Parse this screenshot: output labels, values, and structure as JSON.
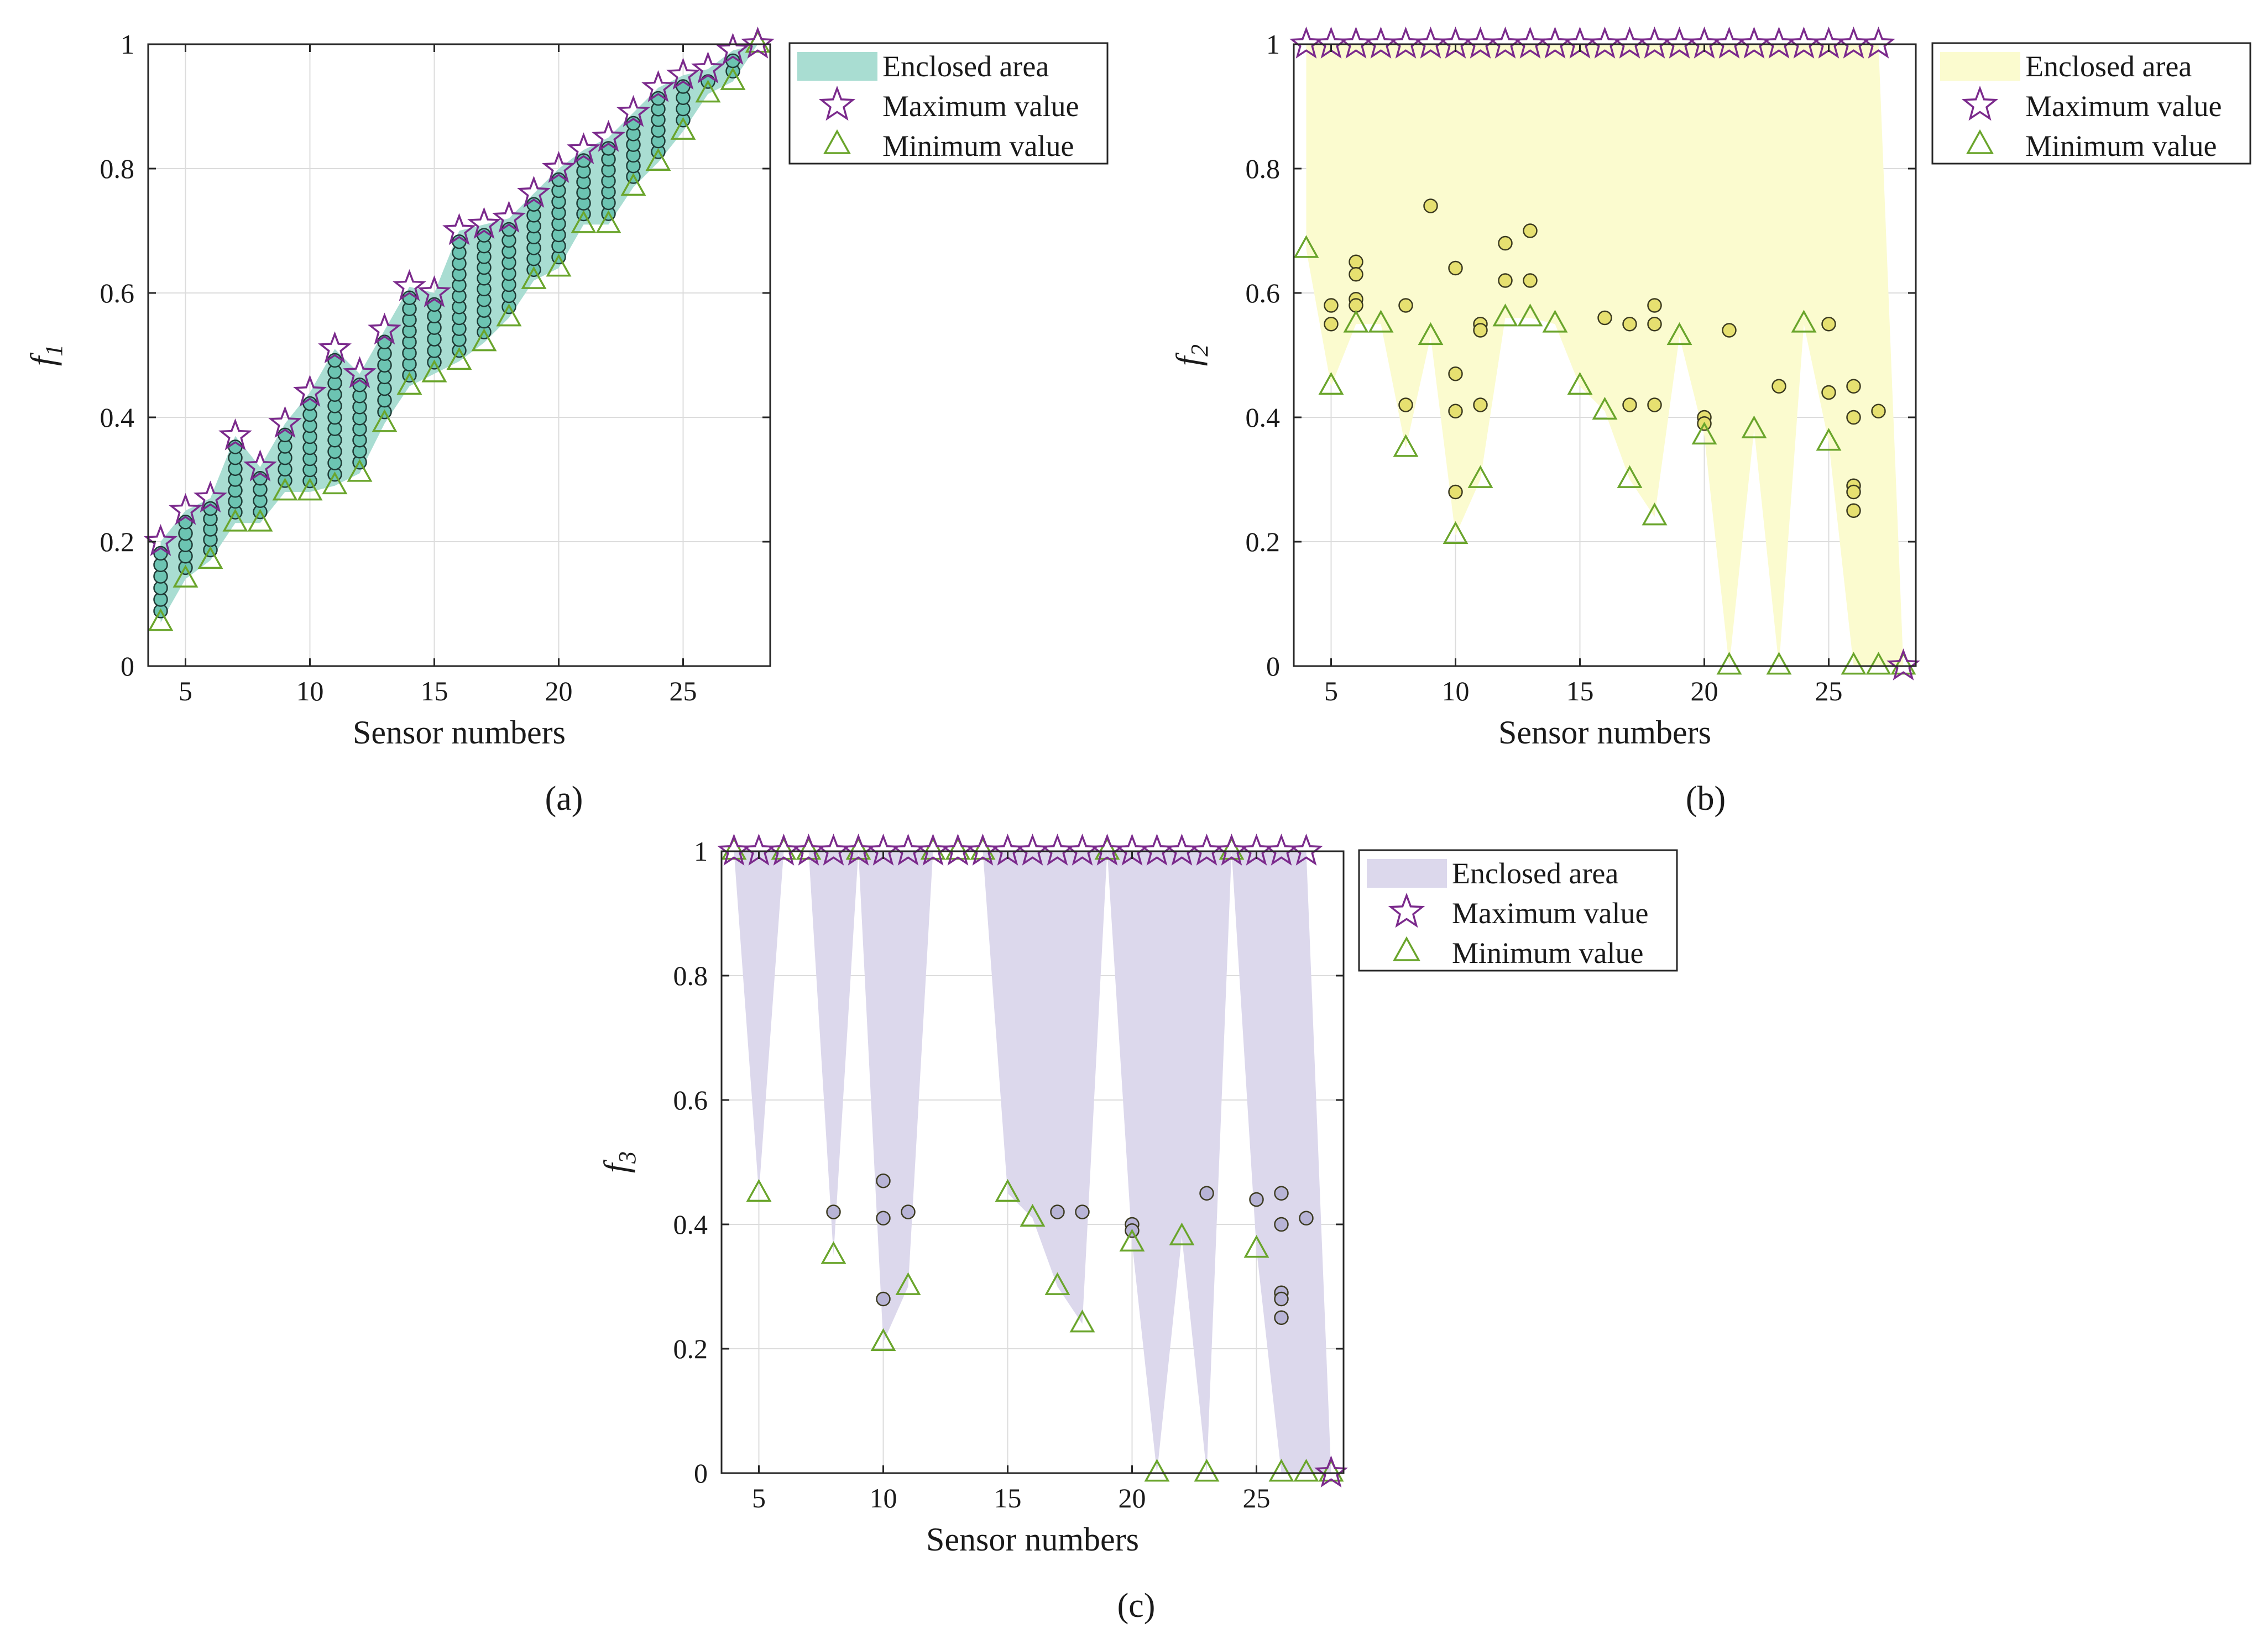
{
  "chart_data": [
    {
      "type": "scatter",
      "panel_label": "(a)",
      "ylabel": "f",
      "ylabel_sub": "1",
      "xlabel": "Sensor numbers",
      "xlim": [
        3.5,
        28.5
      ],
      "ylim": [
        0,
        1
      ],
      "xticks": [
        5,
        10,
        15,
        20,
        25
      ],
      "yticks": [
        0,
        0.2,
        0.4,
        0.6,
        0.8,
        1
      ],
      "grid": true,
      "legend_position": "outside-top-right",
      "legend": [
        "Enclosed area",
        "Maximum value",
        "Minimum value"
      ],
      "colors": {
        "area": "#a9ddd2",
        "points": "#6cc4b2",
        "max": "#7b2a8c",
        "min": "#6aa52c"
      },
      "x": [
        4,
        5,
        6,
        7,
        8,
        9,
        10,
        11,
        12,
        13,
        14,
        15,
        16,
        17,
        18,
        19,
        20,
        21,
        22,
        23,
        24,
        25,
        26,
        27,
        28
      ],
      "max": [
        0.2,
        0.25,
        0.27,
        0.37,
        0.32,
        0.39,
        0.44,
        0.51,
        0.47,
        0.54,
        0.61,
        0.6,
        0.7,
        0.71,
        0.72,
        0.76,
        0.8,
        0.83,
        0.85,
        0.89,
        0.93,
        0.95,
        0.96,
        0.99,
        1.0
      ],
      "min": [
        0.07,
        0.14,
        0.17,
        0.23,
        0.23,
        0.28,
        0.28,
        0.29,
        0.31,
        0.39,
        0.45,
        0.47,
        0.49,
        0.52,
        0.56,
        0.62,
        0.64,
        0.71,
        0.71,
        0.77,
        0.81,
        0.86,
        0.92,
        0.94,
        1.0
      ]
    },
    {
      "type": "scatter",
      "panel_label": "(b)",
      "ylabel": "f",
      "ylabel_sub": "2",
      "xlabel": "Sensor numbers",
      "xlim": [
        3.5,
        28.5
      ],
      "ylim": [
        0,
        1
      ],
      "xticks": [
        5,
        10,
        15,
        20,
        25
      ],
      "yticks": [
        0,
        0.2,
        0.4,
        0.6,
        0.8,
        1
      ],
      "grid": true,
      "legend_position": "outside-top-right",
      "legend": [
        "Enclosed area",
        "Maximum value",
        "Minimum value"
      ],
      "colors": {
        "area": "#fbfbcf",
        "points": "#e6e070",
        "max": "#7b2a8c",
        "min": "#6aa52c"
      },
      "x": [
        4,
        5,
        6,
        7,
        8,
        9,
        10,
        11,
        12,
        13,
        14,
        15,
        16,
        17,
        18,
        19,
        20,
        21,
        22,
        23,
        24,
        25,
        26,
        27,
        28
      ],
      "max": [
        1,
        1,
        1,
        1,
        1,
        1,
        1,
        1,
        1,
        1,
        1,
        1,
        1,
        1,
        1,
        1,
        1,
        1,
        1,
        1,
        1,
        1,
        1,
        1,
        0
      ],
      "min": [
        0.67,
        0.45,
        0.55,
        0.55,
        0.35,
        0.53,
        0.21,
        0.3,
        0.56,
        0.56,
        0.55,
        0.45,
        0.41,
        0.3,
        0.24,
        0.53,
        0.37,
        0.0,
        0.38,
        0.0,
        0.55,
        0.36,
        0.0,
        0.0,
        0.0
      ],
      "points": [
        [
          5,
          0.58
        ],
        [
          5,
          0.55
        ],
        [
          6,
          0.65
        ],
        [
          6,
          0.63
        ],
        [
          6,
          0.59
        ],
        [
          6,
          0.58
        ],
        [
          8,
          0.58
        ],
        [
          8,
          0.42
        ],
        [
          9,
          0.74
        ],
        [
          10,
          0.64
        ],
        [
          10,
          0.47
        ],
        [
          10,
          0.41
        ],
        [
          10,
          0.28
        ],
        [
          11,
          0.55
        ],
        [
          11,
          0.54
        ],
        [
          11,
          0.42
        ],
        [
          12,
          0.68
        ],
        [
          12,
          0.62
        ],
        [
          13,
          0.7
        ],
        [
          13,
          0.62
        ],
        [
          16,
          0.56
        ],
        [
          17,
          0.55
        ],
        [
          17,
          0.42
        ],
        [
          18,
          0.58
        ],
        [
          18,
          0.55
        ],
        [
          18,
          0.42
        ],
        [
          20,
          0.4
        ],
        [
          20,
          0.39
        ],
        [
          21,
          0.54
        ],
        [
          23,
          0.45
        ],
        [
          25,
          0.55
        ],
        [
          25,
          0.44
        ],
        [
          26,
          0.45
        ],
        [
          26,
          0.4
        ],
        [
          26,
          0.29
        ],
        [
          26,
          0.28
        ],
        [
          26,
          0.25
        ],
        [
          27,
          0.41
        ]
      ]
    },
    {
      "type": "scatter",
      "panel_label": "(c)",
      "ylabel": "f",
      "ylabel_sub": "3",
      "xlabel": "Sensor numbers",
      "xlim": [
        3.5,
        28.5
      ],
      "ylim": [
        0,
        1
      ],
      "xticks": [
        5,
        10,
        15,
        20,
        25
      ],
      "yticks": [
        0,
        0.2,
        0.4,
        0.6,
        0.8,
        1
      ],
      "grid": true,
      "legend_position": "outside-top-right",
      "legend": [
        "Enclosed area",
        "Maximum value",
        "Minimum value"
      ],
      "colors": {
        "area": "#dcd8ec",
        "points": "#b8b4d6",
        "max": "#7b2a8c",
        "min": "#6aa52c"
      },
      "x": [
        4,
        5,
        6,
        7,
        8,
        9,
        10,
        11,
        12,
        13,
        14,
        15,
        16,
        17,
        18,
        19,
        20,
        21,
        22,
        23,
        24,
        25,
        26,
        27,
        28
      ],
      "max": [
        1,
        1,
        1,
        1,
        1,
        1,
        1,
        1,
        1,
        1,
        1,
        1,
        1,
        1,
        1,
        1,
        1,
        1,
        1,
        1,
        1,
        1,
        1,
        1,
        0
      ],
      "min": [
        1,
        0.45,
        1,
        1,
        0.35,
        1,
        0.21,
        0.3,
        1,
        1,
        1,
        0.45,
        0.41,
        0.3,
        0.24,
        1,
        0.37,
        0.0,
        0.38,
        0.0,
        1,
        0.36,
        0.0,
        0.0,
        0.0
      ],
      "points": [
        [
          8,
          0.42
        ],
        [
          10,
          0.47
        ],
        [
          10,
          0.41
        ],
        [
          10,
          0.28
        ],
        [
          11,
          0.42
        ],
        [
          17,
          0.42
        ],
        [
          18,
          0.42
        ],
        [
          20,
          0.4
        ],
        [
          20,
          0.39
        ],
        [
          23,
          0.45
        ],
        [
          25,
          0.44
        ],
        [
          26,
          0.45
        ],
        [
          26,
          0.4
        ],
        [
          26,
          0.29
        ],
        [
          26,
          0.28
        ],
        [
          26,
          0.25
        ],
        [
          27,
          0.41
        ]
      ]
    }
  ]
}
